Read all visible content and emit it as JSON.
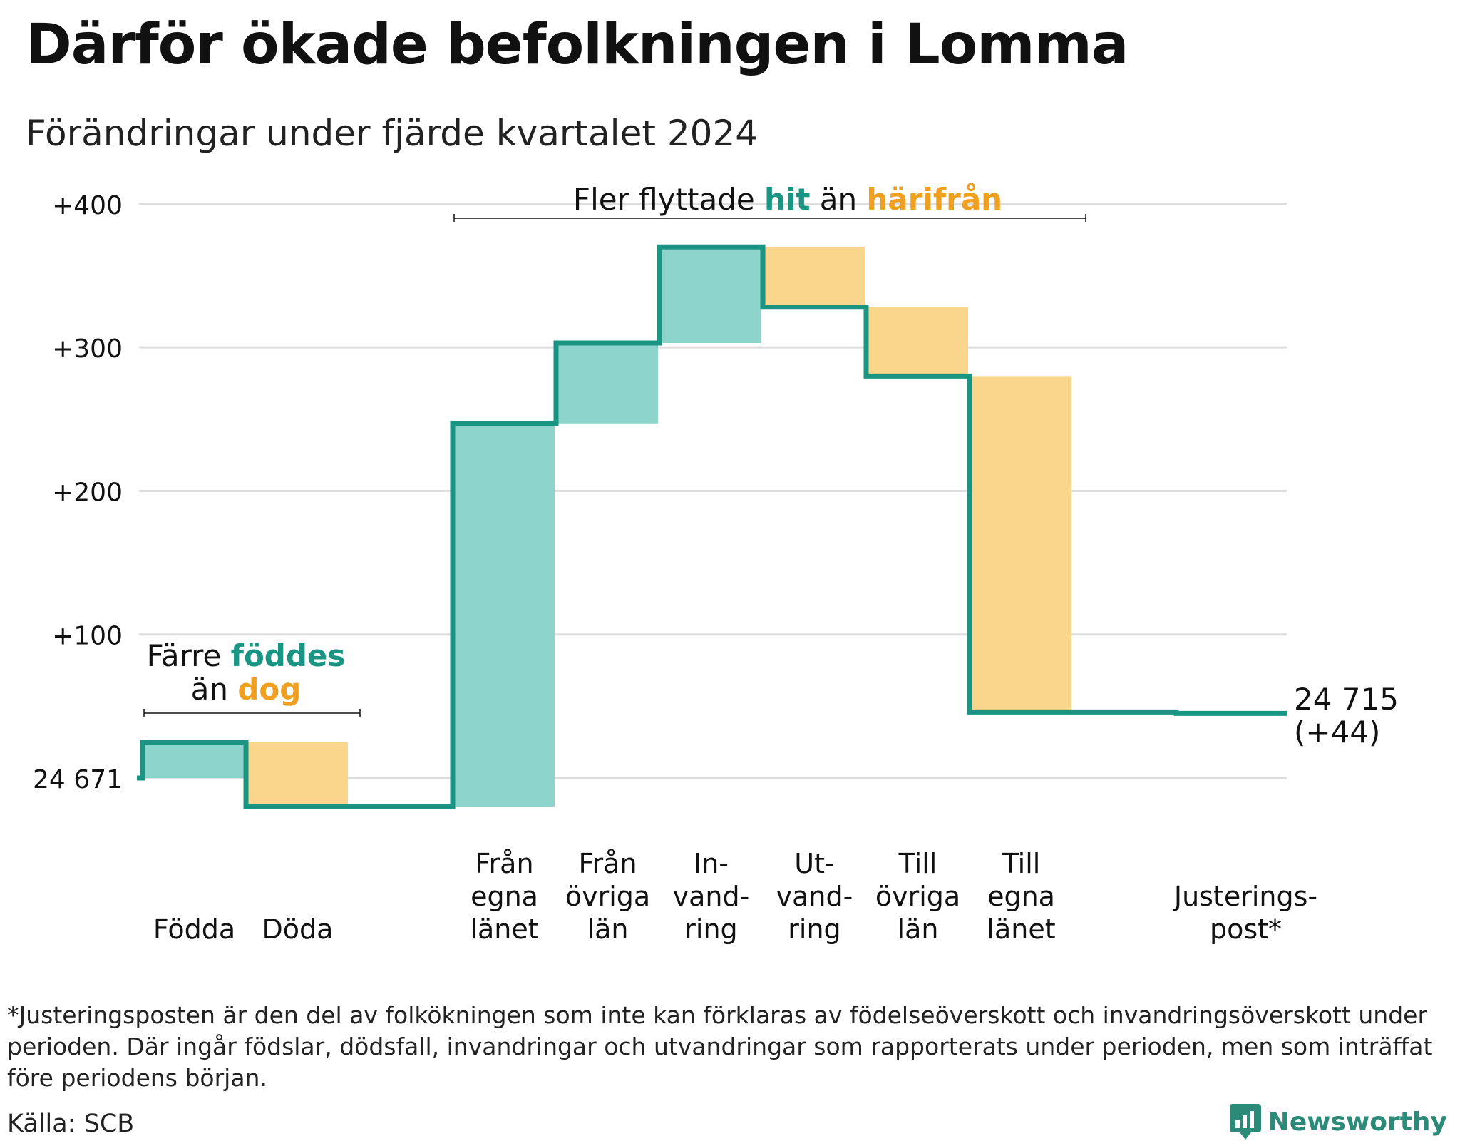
{
  "title": "Därför ökade befolkningen i Lomma",
  "subtitle": "Förändringar under fjärde kvartalet 2024",
  "colors": {
    "inflow": "#8dd5cc",
    "outflow": "#fad58c",
    "line": "#1a9483",
    "teal_text": "#1a9483",
    "orange_text": "#f0a020",
    "grid": "#dddddd"
  },
  "chart_data": {
    "type": "waterfall",
    "base_value": 24671,
    "base_label": "24 671",
    "end_label": [
      "24 715",
      "(+44)"
    ],
    "ylim": [
      -25,
      400
    ],
    "yticks": [
      {
        "value": 0,
        "label": ""
      },
      {
        "value": 100,
        "label": "+100"
      },
      {
        "value": 200,
        "label": "+200"
      },
      {
        "value": 300,
        "label": "+300"
      },
      {
        "value": 400,
        "label": "+400"
      }
    ],
    "steps": [
      {
        "label": [
          "Födda"
        ],
        "change": 25,
        "kind": "in"
      },
      {
        "label": [
          "Döda"
        ],
        "change": -45,
        "kind": "out"
      },
      {
        "label": [],
        "change": 0,
        "kind": "gap"
      },
      {
        "label": [
          "Från",
          "egna",
          "länet"
        ],
        "change": 267,
        "kind": "in"
      },
      {
        "label": [
          "Från",
          "övriga",
          "län"
        ],
        "change": 56,
        "kind": "in"
      },
      {
        "label": [
          "In-",
          "vand-",
          "ring"
        ],
        "change": 67,
        "kind": "in"
      },
      {
        "label": [
          "Ut-",
          "vand-",
          "ring"
        ],
        "change": -42,
        "kind": "out"
      },
      {
        "label": [
          "Till",
          "övriga",
          "län"
        ],
        "change": -48,
        "kind": "out"
      },
      {
        "label": [
          "Till",
          "egna",
          "länet"
        ],
        "change": -234,
        "kind": "out"
      },
      {
        "label": [],
        "change": 0,
        "kind": "flat"
      },
      {
        "label": [
          "Justerings-",
          "post*"
        ],
        "change": -1,
        "kind": "adj"
      }
    ],
    "annotations": {
      "births": {
        "plain1": "Färre",
        "colored1": "föddes",
        "plain2": "än",
        "colored2": "dog"
      },
      "moves": {
        "plain1": "Fler flyttade",
        "colored1": "hit",
        "plain2": "än",
        "colored2": "härifrån"
      }
    }
  },
  "footnote": "*Justeringsposten är den del av folkökningen som inte kan förklaras av födelseöverskott och invandringsöverskott under perioden. Där ingår födslar, dödsfall, invandringar och utvandringar som rapporterats under perioden, men som inträffat före periodens början.",
  "source": "Källa: SCB",
  "brand": "Newsworthy"
}
